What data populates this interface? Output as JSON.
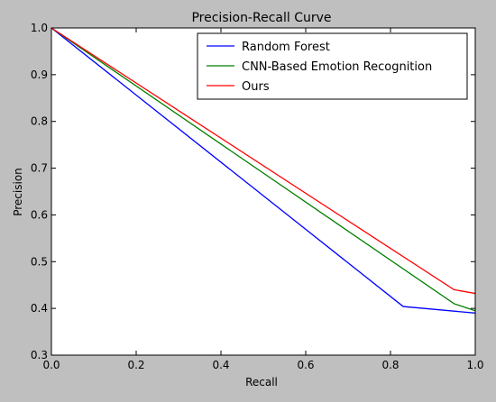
{
  "figure": {
    "background": "#bfbfbf",
    "plot_background": "#ffffff"
  },
  "chart_data": {
    "type": "line",
    "title": "Precision-Recall Curve",
    "xlabel": "Recall",
    "ylabel": "Precision",
    "xlim": [
      0.0,
      1.0
    ],
    "ylim": [
      0.3,
      1.0
    ],
    "xticks": [
      0.0,
      0.2,
      0.4,
      0.6,
      0.8,
      1.0
    ],
    "xtick_labels": [
      "0.0",
      "0.2",
      "0.4",
      "0.6",
      "0.8",
      "1.0"
    ],
    "yticks": [
      0.3,
      0.4,
      0.5,
      0.6,
      0.7,
      0.8,
      0.9,
      1.0
    ],
    "ytick_labels": [
      "0.3",
      "0.4",
      "0.5",
      "0.6",
      "0.7",
      "0.8",
      "0.9",
      "1.0"
    ],
    "grid": false,
    "legend_position": "top-right",
    "series": [
      {
        "name": "Random Forest",
        "color": "#0000ff",
        "x": [
          0.0,
          0.83,
          1.0
        ],
        "y": [
          1.0,
          0.404,
          0.39
        ]
      },
      {
        "name": "CNN-Based Emotion Recognition",
        "color": "#008000",
        "x": [
          0.0,
          0.95,
          1.0
        ],
        "y": [
          1.0,
          0.41,
          0.395
        ]
      },
      {
        "name": "Ours",
        "color": "#ff0000",
        "x": [
          0.0,
          0.95,
          1.0
        ],
        "y": [
          1.0,
          0.44,
          0.432
        ]
      }
    ]
  }
}
